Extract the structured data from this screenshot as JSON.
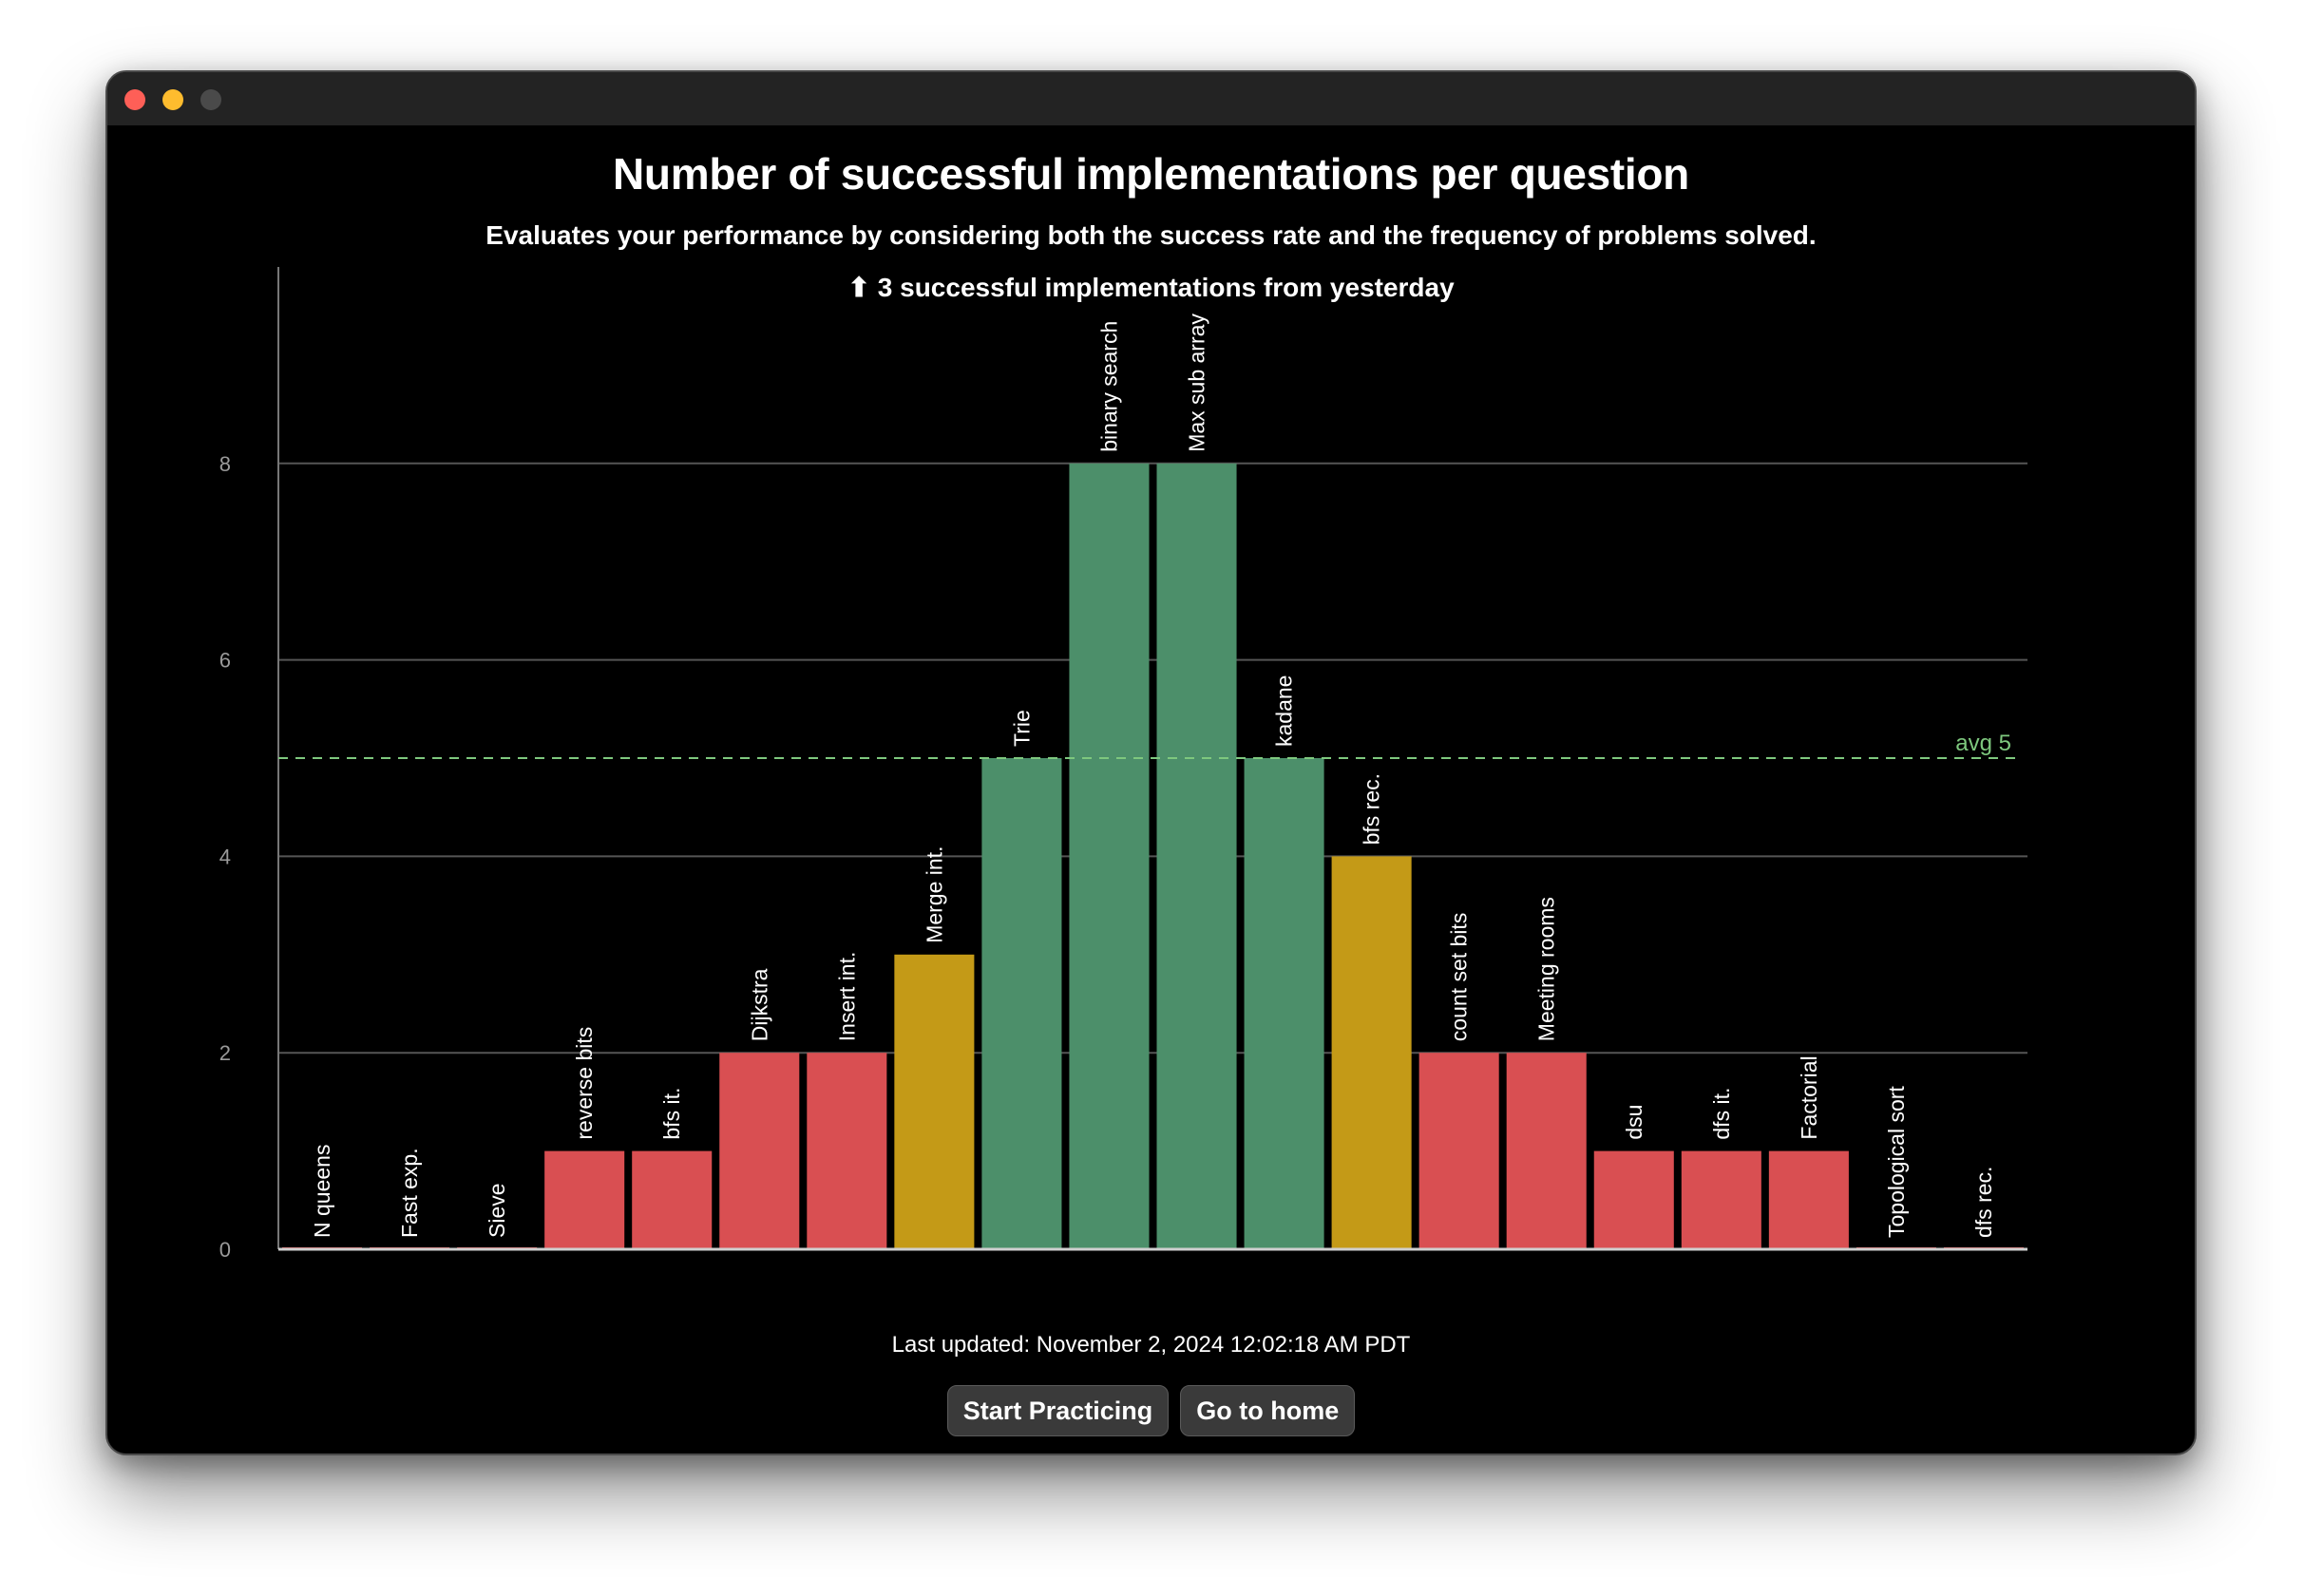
{
  "window": {
    "title_bar": {
      "buttons": [
        "close",
        "minimize",
        "maximize"
      ]
    }
  },
  "header": {
    "title": "Number of successful implementations per question",
    "subtitle": "Evaluates your performance by considering both the success rate and the frequency of problems solved.",
    "change_icon": "arrow-up-icon",
    "change_text": "3 successful implementations from yesterday"
  },
  "footer": {
    "last_updated": "Last updated: November 2, 2024 12:02:18 AM PDT",
    "start_button": "Start Practicing",
    "home_button": "Go to home"
  },
  "colors": {
    "low": "#d94f52",
    "medium": "#c49a17",
    "high": "#4c8f6a",
    "average_line": "#7ec87e",
    "grid": "#555555",
    "background": "#000000"
  },
  "chart_data": {
    "type": "bar",
    "title": "Number of successful implementations per question",
    "xlabel": "",
    "ylabel": "",
    "ylim": [
      0,
      10
    ],
    "y_ticks": [
      0,
      2,
      4,
      6,
      8
    ],
    "grid": true,
    "categories": [
      "N queens",
      "Fast exp.",
      "Sieve",
      "reverse bits",
      "bfs it.",
      "Dijkstra",
      "Insert int.",
      "Merge int.",
      "Trie",
      "binary search",
      "Max sub array",
      "kadane",
      "bfs rec.",
      "count set bits",
      "Meeting rooms",
      "dsu",
      "dfs it.",
      "Factorial",
      "Topological sort",
      "dfs rec."
    ],
    "values": [
      0,
      0,
      0,
      1,
      1,
      2,
      2,
      3,
      5,
      8,
      8,
      5,
      4,
      2,
      2,
      1,
      1,
      1,
      0,
      0
    ],
    "bar_colors": [
      "low",
      "low",
      "low",
      "low",
      "low",
      "low",
      "low",
      "medium",
      "high",
      "high",
      "high",
      "high",
      "medium",
      "low",
      "low",
      "low",
      "low",
      "low",
      "low",
      "low"
    ],
    "average": {
      "value": 5,
      "label": "avg 5"
    }
  }
}
